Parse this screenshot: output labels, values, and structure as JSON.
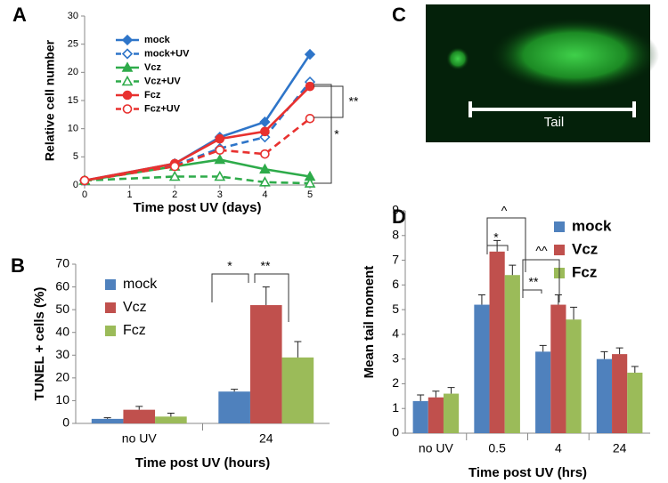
{
  "chart_data": [
    {
      "type": "line",
      "panel": "A",
      "xlabel": "Time post UV (days)",
      "ylabel": "Relative cell number",
      "x": [
        0,
        2,
        3,
        4,
        5
      ],
      "xlim": [
        0,
        5
      ],
      "xticks": [
        0,
        1,
        2,
        3,
        4,
        5
      ],
      "ylim": [
        0,
        30
      ],
      "yticks": [
        0,
        5,
        10,
        15,
        20,
        25,
        30
      ],
      "series": [
        {
          "name": "mock",
          "color": "#2e75c9",
          "dash": false,
          "marker": "diamond",
          "filled": true,
          "values": [
            0.8,
            3.8,
            8.5,
            11.2,
            23.2
          ]
        },
        {
          "name": "mock+UV",
          "color": "#2e75c9",
          "dash": true,
          "marker": "diamond",
          "filled": false,
          "values": [
            0.8,
            3.5,
            6.5,
            8.5,
            18.3
          ]
        },
        {
          "name": "Vcz",
          "color": "#2eab4a",
          "dash": false,
          "marker": "triangle",
          "filled": true,
          "values": [
            0.8,
            3.3,
            4.5,
            2.8,
            1.5
          ]
        },
        {
          "name": "Vcz+UV",
          "color": "#2eab4a",
          "dash": true,
          "marker": "triangle",
          "filled": false,
          "values": [
            0.8,
            1.5,
            1.5,
            0.5,
            0.3
          ]
        },
        {
          "name": "Fcz",
          "color": "#e8312f",
          "dash": false,
          "marker": "circle",
          "filled": true,
          "values": [
            0.8,
            3.8,
            8.2,
            9.5,
            17.5
          ]
        },
        {
          "name": "Fcz+UV",
          "color": "#e8312f",
          "dash": true,
          "marker": "circle",
          "filled": false,
          "values": [
            0.8,
            3.3,
            6.2,
            5.5,
            11.8
          ]
        }
      ],
      "annotations": [
        "**",
        "*"
      ]
    },
    {
      "type": "bar",
      "panel": "B",
      "xlabel": "Time post UV (hours)",
      "ylabel": "TUNEL + cells (%)",
      "categories": [
        "no UV",
        "24"
      ],
      "ylim": [
        0,
        70
      ],
      "yticks": [
        0,
        10,
        20,
        30,
        40,
        50,
        60,
        70
      ],
      "series": [
        {
          "name": "mock",
          "color": "#4f81bd",
          "values": [
            2,
            14
          ],
          "errors": [
            0.5,
            1
          ]
        },
        {
          "name": "Vcz",
          "color": "#c0504d",
          "values": [
            6,
            52
          ],
          "errors": [
            1.5,
            8
          ]
        },
        {
          "name": "Fcz",
          "color": "#9bbb59",
          "values": [
            3,
            29
          ],
          "errors": [
            1.5,
            7
          ]
        }
      ],
      "annotations": [
        "*",
        "**"
      ]
    },
    {
      "type": "image",
      "panel": "C",
      "label": "Tail"
    },
    {
      "type": "bar",
      "panel": "D",
      "xlabel": "Time post UV (hrs)",
      "ylabel": "Mean tail moment",
      "categories": [
        "no UV",
        "0.5",
        "4",
        "24"
      ],
      "ylim": [
        0,
        9
      ],
      "yticks": [
        0,
        1,
        2,
        3,
        4,
        5,
        6,
        7,
        8,
        9
      ],
      "series": [
        {
          "name": "mock",
          "color": "#4f81bd",
          "values": [
            1.3,
            5.2,
            3.3,
            3.0
          ],
          "errors": [
            0.25,
            0.4,
            0.25,
            0.3
          ]
        },
        {
          "name": "Vcz",
          "color": "#c0504d",
          "values": [
            1.45,
            7.35,
            5.2,
            3.2
          ],
          "errors": [
            0.25,
            0.45,
            0.4,
            0.25
          ]
        },
        {
          "name": "Fcz",
          "color": "#9bbb59",
          "values": [
            1.6,
            6.4,
            4.6,
            2.45
          ],
          "errors": [
            0.25,
            0.4,
            0.5,
            0.25
          ]
        }
      ],
      "annotations": [
        "*",
        "^",
        "**",
        "^^"
      ]
    }
  ]
}
